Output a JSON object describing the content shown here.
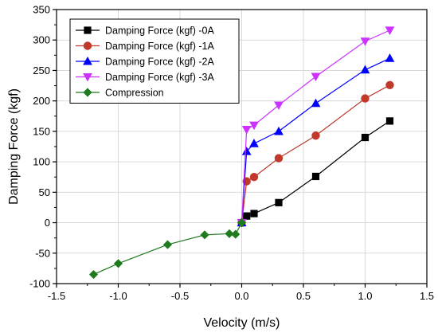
{
  "chart_data": {
    "type": "line",
    "xlabel": "Velocity (m/s)",
    "ylabel": "Damping Force (kgf)",
    "xlim": [
      -1.5,
      1.5
    ],
    "ylim": [
      -100,
      350
    ],
    "x_ticks": [
      "-1.5",
      "-1.0",
      "-0.5",
      "0.0",
      "0.5",
      "1.0",
      "1.5"
    ],
    "y_ticks": [
      "-100",
      "-50",
      "0",
      "50",
      "100",
      "150",
      "200",
      "250",
      "300",
      "350"
    ],
    "grid": true,
    "legend_position": "top-left",
    "series": [
      {
        "name": "Damping Force (kgf) -0A",
        "color": "#000000",
        "marker": "square",
        "x": [
          0.0,
          0.04,
          0.1,
          0.3,
          0.6,
          1.0,
          1.2
        ],
        "y": [
          0,
          11,
          15,
          33,
          76,
          140,
          167
        ]
      },
      {
        "name": "Damping Force (kgf) -1A",
        "color": "#c0392b",
        "marker": "circle",
        "x": [
          0.0,
          0.04,
          0.1,
          0.3,
          0.6,
          1.0,
          1.2
        ],
        "y": [
          0,
          68,
          75,
          106,
          143,
          204,
          226
        ]
      },
      {
        "name": "Damping Force (kgf) -2A",
        "color": "#0000ff",
        "marker": "triangle-up",
        "x": [
          0.0,
          0.04,
          0.1,
          0.3,
          0.6,
          1.0,
          1.2
        ],
        "y": [
          0,
          117,
          130,
          150,
          196,
          251,
          270
        ]
      },
      {
        "name": "Damping Force (kgf) -3A",
        "color": "#cc33ff",
        "marker": "triangle-down",
        "x": [
          0.0,
          0.04,
          0.1,
          0.3,
          0.6,
          1.0,
          1.2
        ],
        "y": [
          0,
          153,
          160,
          193,
          240,
          298,
          316
        ]
      },
      {
        "name": "Compression",
        "color": "#1e7b1e",
        "marker": "diamond",
        "x": [
          -1.2,
          -1.0,
          -0.6,
          -0.3,
          -0.1,
          -0.05,
          0.0
        ],
        "y": [
          -85,
          -67,
          -36,
          -20,
          -18,
          -19,
          0
        ]
      }
    ]
  }
}
